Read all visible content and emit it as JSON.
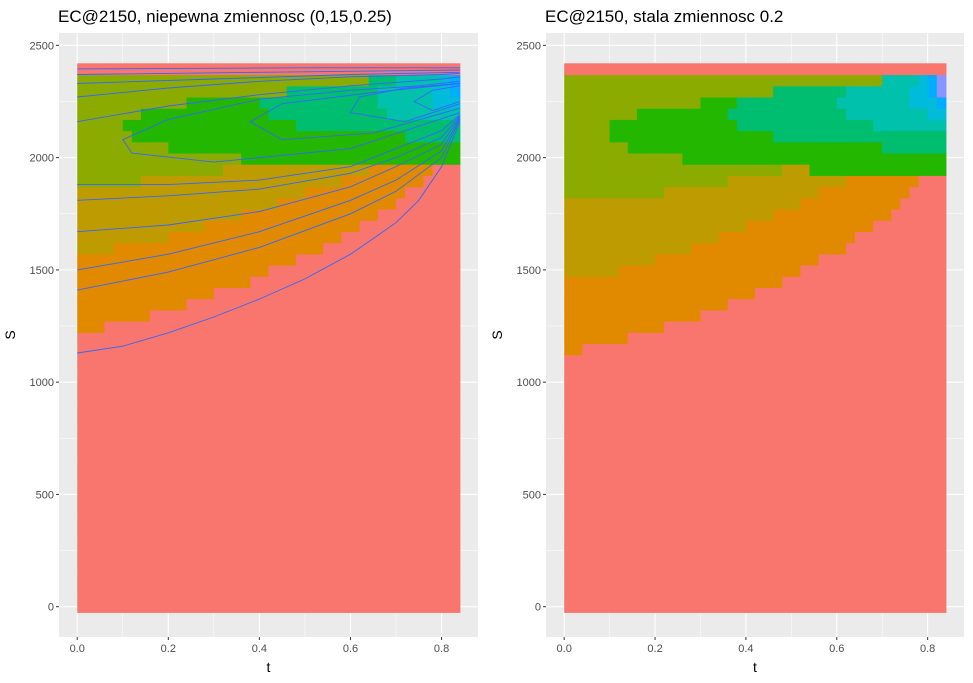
{
  "colors": {
    "panel_background": "#ebebeb",
    "grid_major": "#ffffff",
    "contour_line": "#3366ff",
    "fill_levels": [
      "#F8766D",
      "#E18A00",
      "#BE9C00",
      "#8CAB00",
      "#24B700",
      "#00BE70",
      "#00C1AB",
      "#00BBDA",
      "#00ACFC",
      "#8B93FF",
      "#D575FE",
      "#F962DD"
    ]
  },
  "chart_data": [
    {
      "type": "heatmap",
      "title": "EC@2150, niepewna zmiennosc (0,15,0.25)",
      "xlabel": "t",
      "ylabel": "S",
      "xlim": [
        -0.04,
        0.88
      ],
      "ylim": [
        -135,
        2555
      ],
      "x_ticks": [
        0.0,
        0.2,
        0.4,
        0.6,
        0.8
      ],
      "x_tick_labels": [
        "0.0",
        "0.2",
        "0.4",
        "0.6",
        "0.8"
      ],
      "y_ticks": [
        0,
        500,
        1000,
        1500,
        2000,
        2500
      ],
      "y_tick_labels": [
        "0",
        "500",
        "1000",
        "1500",
        "2000",
        "2500"
      ],
      "grid": true,
      "legend": "none",
      "t_range": [
        0.0,
        0.84
      ],
      "s_range": [
        -25,
        2420
      ],
      "level_boundaries": [
        {
          "level": 1,
          "t": [
            0.0,
            0.1,
            0.2,
            0.3,
            0.4,
            0.5,
            0.6,
            0.7,
            0.75,
            0.8,
            0.84
          ],
          "s": [
            1230,
            1260,
            1320,
            1390,
            1470,
            1560,
            1670,
            1800,
            1880,
            1990,
            2150
          ]
        },
        {
          "level": 2,
          "t": [
            0.0,
            0.1,
            0.2,
            0.3,
            0.4,
            0.5,
            0.6,
            0.7,
            0.8,
            0.84
          ],
          "s": [
            1570,
            1600,
            1650,
            1710,
            1770,
            1840,
            1920,
            2000,
            2100,
            2170
          ]
        },
        {
          "level": 3,
          "t": [
            0.0,
            0.1,
            0.2,
            0.3,
            0.4,
            0.5,
            0.6,
            0.7,
            0.8,
            0.84
          ],
          "s": [
            1880,
            1890,
            1910,
            1940,
            1970,
            2010,
            2050,
            2100,
            2160,
            2190
          ]
        },
        {
          "level": 4,
          "t": [
            0.0,
            0.1,
            0.2,
            0.3,
            0.4,
            0.5,
            0.6,
            0.7,
            0.8,
            0.84
          ],
          "s": [
            2380,
            2380,
            2380,
            2380,
            2380,
            2380,
            2380,
            2380,
            2380,
            2380
          ]
        }
      ],
      "level_islands": [
        {
          "level": 4,
          "t_min": 0.1,
          "t_max": 0.84,
          "s_min": 1950,
          "s_max": 2320
        },
        {
          "level": 5,
          "t_min": 0.4,
          "t_max": 0.84,
          "s_min": 2090,
          "s_max": 2360
        },
        {
          "level": 6,
          "t_min": 0.65,
          "t_max": 0.84,
          "s_min": 2150,
          "s_max": 2380
        },
        {
          "level": 7,
          "t_min": 0.78,
          "t_max": 0.84,
          "s_min": 2200,
          "s_max": 2380
        },
        {
          "level": 8,
          "t_min": 0.82,
          "t_max": 0.84,
          "s_min": 2240,
          "s_max": 2360
        }
      ],
      "contours": [
        {
          "t": [
            0.0,
            0.1,
            0.2,
            0.3,
            0.4,
            0.5,
            0.6,
            0.7,
            0.75,
            0.8,
            0.84
          ],
          "s": [
            1130,
            1160,
            1220,
            1290,
            1370,
            1460,
            1570,
            1710,
            1810,
            1960,
            2160
          ]
        },
        {
          "t": [
            0.0,
            0.2,
            0.4,
            0.6,
            0.7,
            0.8,
            0.84
          ],
          "s": [
            1410,
            1490,
            1600,
            1750,
            1850,
            2000,
            2170
          ]
        },
        {
          "t": [
            0.0,
            0.2,
            0.4,
            0.6,
            0.7,
            0.8,
            0.84
          ],
          "s": [
            1500,
            1570,
            1670,
            1810,
            1900,
            2030,
            2175
          ]
        },
        {
          "t": [
            0.0,
            0.2,
            0.4,
            0.6,
            0.7,
            0.8,
            0.84
          ],
          "s": [
            1670,
            1700,
            1760,
            1870,
            1960,
            2060,
            2180
          ]
        },
        {
          "t": [
            0.0,
            0.2,
            0.4,
            0.6,
            0.7,
            0.8,
            0.84
          ],
          "s": [
            1810,
            1830,
            1860,
            1930,
            2000,
            2090,
            2185
          ]
        },
        {
          "t": [
            0.0,
            0.2,
            0.4,
            0.6,
            0.7,
            0.8,
            0.84
          ],
          "s": [
            1880,
            1880,
            1900,
            1960,
            2040,
            2120,
            2190
          ]
        },
        {
          "t": [
            0.84,
            0.6,
            0.3,
            0.12,
            0.1,
            0.2,
            0.4,
            0.6,
            0.75,
            0.84
          ],
          "s": [
            2200,
            2040,
            1980,
            2020,
            2080,
            2170,
            2260,
            2300,
            2320,
            2340
          ]
        },
        {
          "t": [
            0.84,
            0.65,
            0.45,
            0.38,
            0.45,
            0.65,
            0.84
          ],
          "s": [
            2220,
            2110,
            2080,
            2160,
            2240,
            2290,
            2330
          ]
        },
        {
          "t": [
            0.84,
            0.72,
            0.6,
            0.62,
            0.72,
            0.84
          ],
          "s": [
            2240,
            2160,
            2200,
            2270,
            2310,
            2330
          ]
        },
        {
          "t": [
            0.84,
            0.78,
            0.74,
            0.78,
            0.84
          ],
          "s": [
            2250,
            2210,
            2250,
            2300,
            2320
          ]
        },
        {
          "t": [
            0.0,
            0.2,
            0.4,
            0.6,
            0.8,
            0.84
          ],
          "s": [
            2160,
            2230,
            2280,
            2320,
            2350,
            2360
          ]
        },
        {
          "t": [
            0.0,
            0.2,
            0.4,
            0.6,
            0.8,
            0.84
          ],
          "s": [
            2270,
            2310,
            2340,
            2360,
            2370,
            2375
          ]
        },
        {
          "t": [
            0.0,
            0.3,
            0.6,
            0.84
          ],
          "s": [
            2330,
            2350,
            2370,
            2380
          ]
        },
        {
          "t": [
            0.0,
            0.4,
            0.84
          ],
          "s": [
            2370,
            2380,
            2390
          ]
        },
        {
          "t": [
            0.0,
            0.5,
            0.84
          ],
          "s": [
            2395,
            2400,
            2400
          ]
        }
      ]
    },
    {
      "type": "heatmap",
      "title": "EC@2150, stala zmiennosc 0.2",
      "xlabel": "t",
      "ylabel": "S",
      "xlim": [
        -0.04,
        0.88
      ],
      "ylim": [
        -135,
        2555
      ],
      "x_ticks": [
        0.0,
        0.2,
        0.4,
        0.6,
        0.8
      ],
      "x_tick_labels": [
        "0.0",
        "0.2",
        "0.4",
        "0.6",
        "0.8"
      ],
      "y_ticks": [
        0,
        500,
        1000,
        1500,
        2000,
        2500
      ],
      "y_tick_labels": [
        "0",
        "500",
        "1000",
        "1500",
        "2000",
        "2500"
      ],
      "grid": true,
      "legend": "none",
      "t_range": [
        0.0,
        0.84
      ],
      "s_range": [
        -25,
        2420
      ],
      "level_boundaries": [
        {
          "level": 1,
          "t": [
            0.0,
            0.1,
            0.2,
            0.3,
            0.4,
            0.5,
            0.6,
            0.7,
            0.75,
            0.8,
            0.84
          ],
          "s": [
            1130,
            1170,
            1230,
            1300,
            1380,
            1470,
            1580,
            1720,
            1820,
            1960,
            2170
          ]
        },
        {
          "level": 2,
          "t": [
            0.0,
            0.1,
            0.2,
            0.3,
            0.4,
            0.5,
            0.6,
            0.7,
            0.8,
            0.84
          ],
          "s": [
            1450,
            1480,
            1540,
            1610,
            1690,
            1780,
            1880,
            1980,
            2100,
            2180
          ]
        },
        {
          "level": 3,
          "t": [
            0.0,
            0.1,
            0.2,
            0.3,
            0.4,
            0.5,
            0.6,
            0.7,
            0.8,
            0.84
          ],
          "s": [
            1810,
            1820,
            1840,
            1870,
            1910,
            1960,
            2020,
            2080,
            2150,
            2200
          ]
        },
        {
          "level": 4,
          "t": [
            0.0,
            0.1,
            0.2,
            0.3,
            0.4,
            0.5,
            0.6,
            0.7,
            0.8,
            0.84
          ],
          "s": [
            2380,
            2380,
            2380,
            2380,
            2380,
            2380,
            2380,
            2380,
            2380,
            2380
          ]
        }
      ],
      "level_islands": [
        {
          "level": 4,
          "t_min": 0.09,
          "t_max": 0.84,
          "s_min": 1930,
          "s_max": 2300
        },
        {
          "level": 5,
          "t_min": 0.35,
          "t_max": 0.84,
          "s_min": 2040,
          "s_max": 2350
        },
        {
          "level": 6,
          "t_min": 0.6,
          "t_max": 0.84,
          "s_min": 2110,
          "s_max": 2370
        },
        {
          "level": 7,
          "t_min": 0.75,
          "t_max": 0.84,
          "s_min": 2180,
          "s_max": 2380
        },
        {
          "level": 8,
          "t_min": 0.8,
          "t_max": 0.84,
          "s_min": 2220,
          "s_max": 2380
        },
        {
          "level": 9,
          "t_min": 0.82,
          "t_max": 0.84,
          "s_min": 2260,
          "s_max": 2360
        },
        {
          "level": 10,
          "t_min": 0.83,
          "t_max": 0.84,
          "s_min": 2290,
          "s_max": 2340
        }
      ],
      "contours": []
    }
  ]
}
